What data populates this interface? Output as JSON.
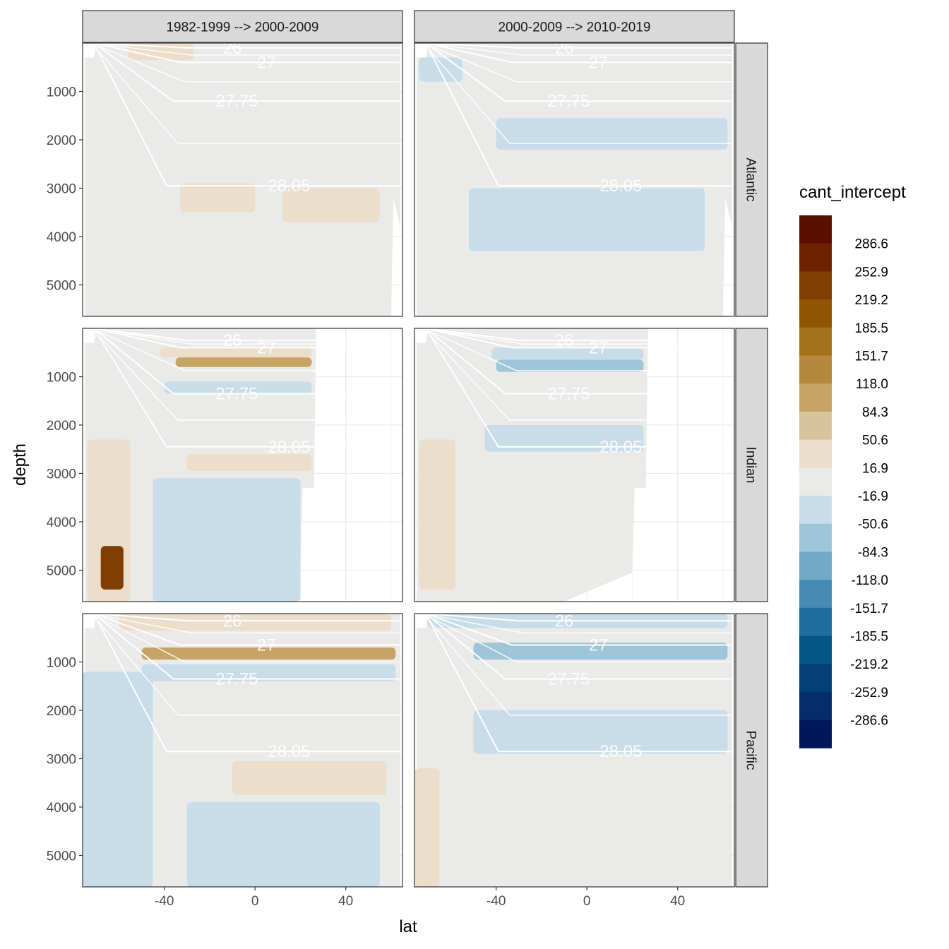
{
  "chart_data": {
    "type": "heatmap",
    "xlabel": "lat",
    "ylabel": "depth",
    "xlim": [
      -76,
      65
    ],
    "ylim": [
      5650,
      0
    ],
    "x_ticks": [
      -40,
      0,
      40
    ],
    "x_tick_labels": [
      "-40",
      "0",
      "40"
    ],
    "y_ticks": [
      1000,
      2000,
      3000,
      4000,
      5000
    ],
    "y_tick_labels": [
      "1000",
      "2000",
      "3000",
      "4000",
      "5000"
    ],
    "columns": [
      "1982-1999 --> 2000-2009",
      "2000-2009 --> 2010-2019"
    ],
    "rows": [
      "Atlantic",
      "Indian",
      "Pacific"
    ],
    "legend": {
      "title": "cant_intercept",
      "breaks": [
        "286.6",
        "252.9",
        "219.2",
        "185.5",
        "151.7",
        "118.0",
        "84.3",
        "50.6",
        "16.9",
        "-16.9",
        "-50.6",
        "-84.3",
        "-118.0",
        "-151.7",
        "-185.5",
        "-219.2",
        "-252.9",
        "-286.6"
      ],
      "colors": [
        "#5c0f00",
        "#6f2200",
        "#813e02",
        "#8f5505",
        "#a4721b",
        "#b4883d",
        "#c5a464",
        "#d8c49c",
        "#ebdecb",
        "#eaebe9",
        "#c8dde9",
        "#9fc5d8",
        "#72a9c7",
        "#468cb2",
        "#1f6d9e",
        "#045686",
        "#053f78",
        "#042d6a",
        "#021759"
      ]
    },
    "isopycnal_labels": [
      "26",
      "27",
      "27.75",
      "28.05"
    ],
    "isopycnal_depths": {
      "Atlantic": [
        {
          "label": "26",
          "depth": 100
        },
        {
          "label": "27",
          "depth": 400
        },
        {
          "label": "27.75",
          "depth": 1200
        },
        {
          "label": "28.05",
          "depth": 2950
        }
      ],
      "Indian": [
        {
          "label": "26",
          "depth": 250
        },
        {
          "label": "27",
          "depth": 400
        },
        {
          "label": "27.75",
          "depth": 1350
        },
        {
          "label": "28.05",
          "depth": 2450
        }
      ],
      "Pacific": [
        {
          "label": "26",
          "depth": 150
        },
        {
          "label": "27",
          "depth": 650
        },
        {
          "label": "27.75",
          "depth": 1350
        },
        {
          "label": "28.05",
          "depth": 2850
        }
      ]
    },
    "anomaly_bands": [
      {
        "col": 0,
        "row": "Atlantic",
        "lat": [
          -56,
          -27
        ],
        "depth": [
          0,
          350
        ],
        "value": 30
      },
      {
        "col": 0,
        "row": "Atlantic",
        "lat": [
          -33,
          0
        ],
        "depth": [
          2900,
          3500
        ],
        "value": 30
      },
      {
        "col": 0,
        "row": "Atlantic",
        "lat": [
          12,
          55
        ],
        "depth": [
          3000,
          3700
        ],
        "value": 30
      },
      {
        "col": 1,
        "row": "Atlantic",
        "lat": [
          -74,
          -55
        ],
        "depth": [
          300,
          800
        ],
        "value": -30
      },
      {
        "col": 1,
        "row": "Atlantic",
        "lat": [
          -40,
          62
        ],
        "depth": [
          1550,
          2200
        ],
        "value": -30
      },
      {
        "col": 1,
        "row": "Atlantic",
        "lat": [
          -52,
          52
        ],
        "depth": [
          3000,
          4300
        ],
        "value": -30
      },
      {
        "col": 0,
        "row": "Indian",
        "lat": [
          -35,
          25
        ],
        "depth": [
          600,
          800
        ],
        "value": 90
      },
      {
        "col": 0,
        "row": "Indian",
        "lat": [
          -42,
          25
        ],
        "depth": [
          400,
          600
        ],
        "value": 30
      },
      {
        "col": 0,
        "row": "Indian",
        "lat": [
          -40,
          25
        ],
        "depth": [
          1100,
          1350
        ],
        "value": -30
      },
      {
        "col": 0,
        "row": "Indian",
        "lat": [
          -30,
          25
        ],
        "depth": [
          2600,
          2950
        ],
        "value": 30
      },
      {
        "col": 0,
        "row": "Indian",
        "lat": [
          -45,
          20
        ],
        "depth": [
          3100,
          5650
        ],
        "value": -30
      },
      {
        "col": 0,
        "row": "Indian",
        "lat": [
          -74,
          -55
        ],
        "depth": [
          2300,
          5650
        ],
        "value": 30
      },
      {
        "col": 0,
        "row": "Indian",
        "lat": [
          -68,
          -58
        ],
        "depth": [
          4500,
          5400
        ],
        "value": 250
      },
      {
        "col": 1,
        "row": "Indian",
        "lat": [
          -42,
          25
        ],
        "depth": [
          400,
          650
        ],
        "value": -30
      },
      {
        "col": 1,
        "row": "Indian",
        "lat": [
          -40,
          25
        ],
        "depth": [
          650,
          900
        ],
        "value": -70
      },
      {
        "col": 1,
        "row": "Indian",
        "lat": [
          -45,
          25
        ],
        "depth": [
          2000,
          2550
        ],
        "value": -30
      },
      {
        "col": 1,
        "row": "Indian",
        "lat": [
          -74,
          -58
        ],
        "depth": [
          2300,
          5400
        ],
        "value": 30
      },
      {
        "col": 0,
        "row": "Pacific",
        "lat": [
          -60,
          60
        ],
        "depth": [
          0,
          350
        ],
        "value": 30
      },
      {
        "col": 0,
        "row": "Pacific",
        "lat": [
          -50,
          62
        ],
        "depth": [
          700,
          950
        ],
        "value": 90
      },
      {
        "col": 0,
        "row": "Pacific",
        "lat": [
          -50,
          62
        ],
        "depth": [
          1050,
          1400
        ],
        "value": -30
      },
      {
        "col": 0,
        "row": "Pacific",
        "lat": [
          -10,
          58
        ],
        "depth": [
          3050,
          3750
        ],
        "value": 30
      },
      {
        "col": 0,
        "row": "Pacific",
        "lat": [
          -76,
          -45
        ],
        "depth": [
          1200,
          5650
        ],
        "value": -30
      },
      {
        "col": 0,
        "row": "Pacific",
        "lat": [
          -30,
          55
        ],
        "depth": [
          3900,
          5650
        ],
        "value": -30
      },
      {
        "col": 1,
        "row": "Pacific",
        "lat": [
          -70,
          62
        ],
        "depth": [
          0,
          300
        ],
        "value": -30
      },
      {
        "col": 1,
        "row": "Pacific",
        "lat": [
          -50,
          62
        ],
        "depth": [
          600,
          950
        ],
        "value": -70
      },
      {
        "col": 1,
        "row": "Pacific",
        "lat": [
          -50,
          62
        ],
        "depth": [
          2000,
          2900
        ],
        "value": -30
      },
      {
        "col": 1,
        "row": "Pacific",
        "lat": [
          -76,
          -65
        ],
        "depth": [
          3200,
          5650
        ],
        "value": 30
      }
    ]
  }
}
